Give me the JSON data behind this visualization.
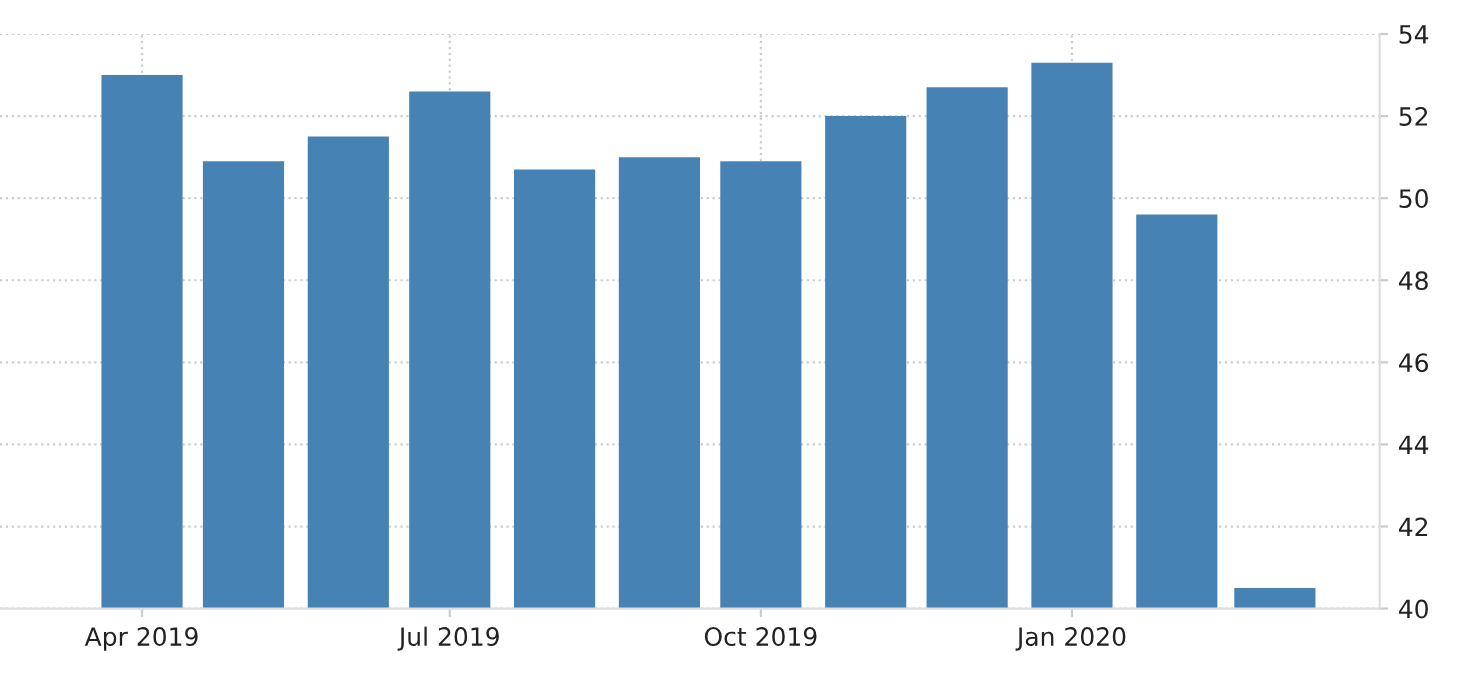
{
  "chart_data": {
    "type": "bar",
    "x": [
      "2019-04",
      "2019-05",
      "2019-06",
      "2019-07",
      "2019-08",
      "2019-09",
      "2019-10",
      "2019-11",
      "2019-12",
      "2020-01",
      "2020-02",
      "2020-03"
    ],
    "values": [
      53.0,
      50.9,
      51.5,
      52.6,
      50.7,
      51.0,
      50.9,
      52.0,
      52.7,
      53.3,
      49.6,
      40.5
    ],
    "color": "#4682b4",
    "xlim": [
      "2019-02-18",
      "2020-04-01"
    ],
    "xticks": [
      {
        "value": "2019-04",
        "label": "Apr 2019"
      },
      {
        "value": "2019-07",
        "label": "Jul 2019"
      },
      {
        "value": "2019-10",
        "label": "Oct 2019"
      },
      {
        "value": "2020-01",
        "label": "Jan 2020"
      }
    ],
    "ylim": [
      40,
      54
    ],
    "yticks": [
      40,
      42,
      44,
      46,
      48,
      50,
      52,
      54
    ],
    "grid": true,
    "legend": false
  }
}
